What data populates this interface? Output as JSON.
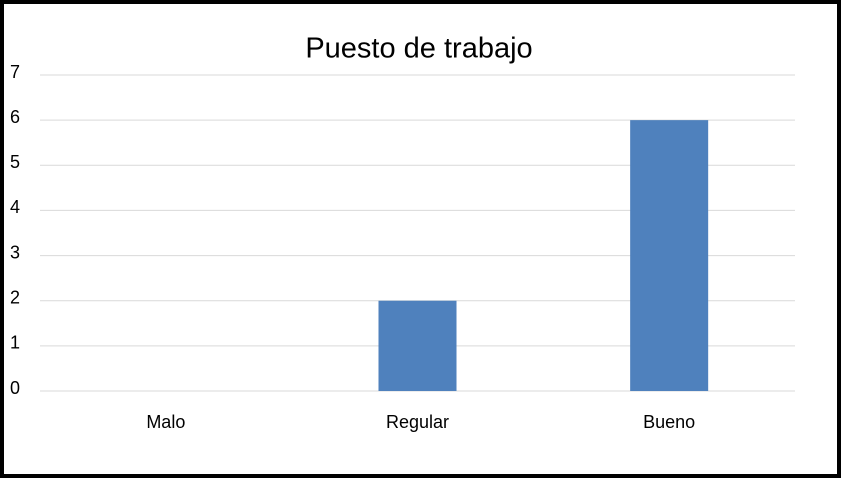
{
  "chart_data": {
    "type": "bar",
    "title": "Puesto de trabajo",
    "categories": [
      "Malo",
      "Regular",
      "Bueno"
    ],
    "values": [
      0,
      2,
      6
    ],
    "color": "#4f81bd",
    "ylim": [
      0,
      7
    ],
    "yticks": [
      0,
      1,
      2,
      3,
      4,
      5,
      6,
      7
    ],
    "grid": true
  }
}
